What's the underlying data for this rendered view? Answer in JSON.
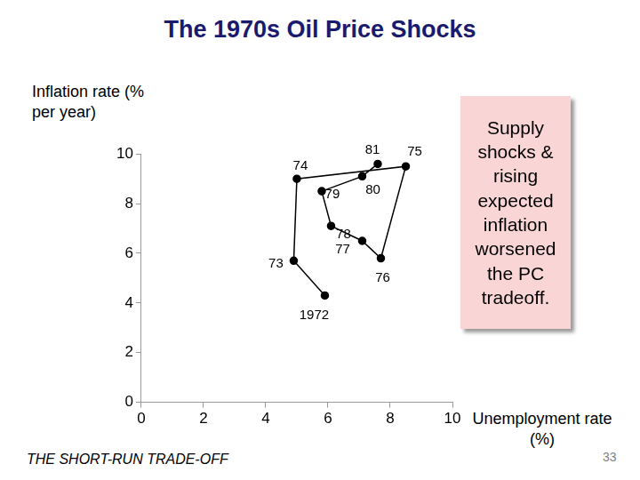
{
  "chart_data": {
    "type": "scatter",
    "title": "The 1970s Oil Price Shocks",
    "y_label": "Inflation rate (% per year)",
    "x_label": "Unemployment rate (%)",
    "annotation": "Supply shocks & rising expected inflation worsened the PC tradeoff.",
    "footer": "THE SHORT-RUN TRADE-OFF",
    "page_number": "33",
    "point_labels": [
      "1972",
      "73",
      "74",
      "75",
      "76",
      "77",
      "78",
      "79",
      "80",
      "81"
    ],
    "x": [
      5.9,
      4.9,
      5.0,
      8.5,
      7.7,
      7.1,
      6.1,
      5.8,
      7.1,
      7.6
    ],
    "values": [
      4.3,
      5.7,
      9.0,
      9.5,
      5.8,
      6.5,
      7.1,
      8.5,
      9.1,
      9.6
    ],
    "color": "#000000",
    "marker": "circle",
    "line_style": "solid",
    "xlim": [
      0,
      10
    ],
    "xticks": [
      0,
      2,
      4,
      6,
      8,
      10
    ],
    "ylim": [
      0,
      10
    ],
    "yticks": [
      0,
      2,
      4,
      6,
      8,
      10
    ],
    "grid": false
  }
}
